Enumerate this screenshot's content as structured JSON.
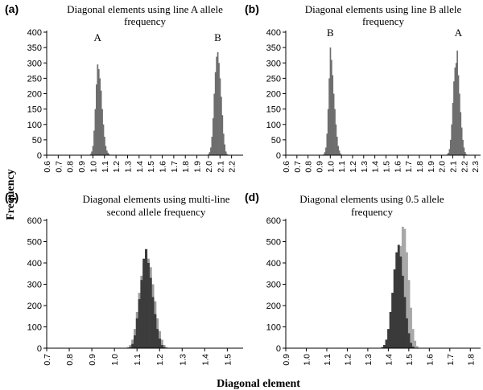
{
  "figure": {
    "ylabel": "Frequency",
    "xlabel": "Diagonal element"
  },
  "chart_data": [
    {
      "type": "bar",
      "panel": "(a)",
      "title_lines": [
        "Diagonal  elements using line A allele",
        "frequency"
      ],
      "ylim": [
        0,
        400
      ],
      "yticks": [
        0,
        50,
        100,
        150,
        200,
        250,
        300,
        350,
        400
      ],
      "xlim": [
        0.6,
        2.3
      ],
      "xticks": [
        "0.6",
        "0.7",
        "0.8",
        "0.9",
        "1.0",
        "1.1",
        "1.2",
        "1.3",
        "1.4",
        "1.5",
        "1.6",
        "1.7",
        "1.8",
        "1.9",
        "2.0",
        "2.1",
        "2.2"
      ],
      "bin_width": 0.01,
      "peak_labels": [
        {
          "text": "A",
          "x": 1.04
        },
        {
          "text": "B",
          "x": 2.08
        }
      ],
      "series": [
        {
          "color": "#6e6e6e",
          "x": [
            0.98,
            0.99,
            1.0,
            1.01,
            1.02,
            1.03,
            1.04,
            1.05,
            1.06,
            1.07,
            1.08,
            1.09,
            1.1,
            1.11,
            1.12,
            1.13,
            1.14
          ],
          "values": [
            4,
            12,
            30,
            80,
            150,
            230,
            295,
            280,
            250,
            210,
            150,
            100,
            60,
            30,
            15,
            8,
            3
          ]
        },
        {
          "color": "#6e6e6e",
          "x": [
            2.0,
            2.01,
            2.02,
            2.03,
            2.04,
            2.05,
            2.06,
            2.07,
            2.08,
            2.09,
            2.1,
            2.11,
            2.12,
            2.13,
            2.14,
            2.15,
            2.16
          ],
          "values": [
            4,
            10,
            25,
            60,
            120,
            200,
            270,
            320,
            335,
            300,
            250,
            190,
            130,
            70,
            35,
            12,
            4
          ]
        }
      ]
    },
    {
      "type": "bar",
      "panel": "(b)",
      "title_lines": [
        "Diagonal elements using line B allele",
        "frequency"
      ],
      "ylim": [
        0,
        400
      ],
      "yticks": [
        0,
        50,
        100,
        150,
        200,
        250,
        300,
        350,
        400
      ],
      "xlim": [
        0.6,
        2.35
      ],
      "xticks": [
        "0.6",
        "0.7",
        "0.8",
        "0.9",
        "1.0",
        "1.1",
        "1.2",
        "1.3",
        "1.4",
        "1.5",
        "1.6",
        "1.7",
        "1.8",
        "1.9",
        "2.0",
        "2.1",
        "2.2",
        "2.3"
      ],
      "bin_width": 0.01,
      "peak_labels": [
        {
          "text": "B",
          "x": 1.0
        },
        {
          "text": "A",
          "x": 2.15
        }
      ],
      "series": [
        {
          "color": "#6e6e6e",
          "x": [
            0.94,
            0.95,
            0.96,
            0.97,
            0.98,
            0.99,
            1.0,
            1.01,
            1.02,
            1.03,
            1.04,
            1.05,
            1.06,
            1.07,
            1.08,
            1.09,
            1.1
          ],
          "values": [
            3,
            10,
            25,
            70,
            150,
            250,
            350,
            310,
            260,
            200,
            150,
            100,
            60,
            30,
            15,
            6,
            2
          ]
        },
        {
          "color": "#6e6e6e",
          "x": [
            2.05,
            2.06,
            2.07,
            2.08,
            2.09,
            2.1,
            2.11,
            2.12,
            2.13,
            2.14,
            2.15,
            2.16,
            2.17,
            2.18,
            2.19,
            2.2,
            2.21,
            2.22
          ],
          "values": [
            3,
            8,
            20,
            50,
            100,
            170,
            240,
            285,
            300,
            340,
            260,
            200,
            140,
            90,
            50,
            25,
            10,
            3
          ]
        }
      ]
    },
    {
      "type": "bar",
      "panel": "(c)",
      "title_lines": [
        "Diagonal elements using multi-line",
        "second allele frequency"
      ],
      "ylim": [
        0,
        600
      ],
      "yticks": [
        0,
        100,
        200,
        300,
        400,
        500,
        600
      ],
      "xlim": [
        0.7,
        1.57
      ],
      "xticks": [
        "0.7",
        "0.8",
        "0.9",
        "1.0",
        "1.1",
        "1.2",
        "1.3",
        "1.4",
        "1.5"
      ],
      "bin_width": 0.01,
      "peak_labels": [],
      "series": [
        {
          "color": "#9c9c9c",
          "x": [
            1.06,
            1.07,
            1.08,
            1.09,
            1.1,
            1.11,
            1.12,
            1.13,
            1.14,
            1.15,
            1.16,
            1.17,
            1.18,
            1.19,
            1.2,
            1.21,
            1.22,
            1.23
          ],
          "values": [
            5,
            15,
            40,
            90,
            170,
            260,
            340,
            400,
            440,
            420,
            380,
            300,
            220,
            140,
            80,
            40,
            15,
            5
          ]
        },
        {
          "color": "#3c3c3c",
          "x": [
            1.07,
            1.08,
            1.09,
            1.1,
            1.11,
            1.12,
            1.13,
            1.14,
            1.15,
            1.16,
            1.17,
            1.18,
            1.19,
            1.2,
            1.21,
            1.22
          ],
          "values": [
            5,
            20,
            60,
            140,
            230,
            320,
            420,
            465,
            400,
            330,
            240,
            160,
            90,
            45,
            15,
            5
          ]
        }
      ]
    },
    {
      "type": "bar",
      "panel": "(d)",
      "title_lines": [
        "Diagonal elements using 0.5 allele",
        "frequency"
      ],
      "ylim": [
        0,
        600
      ],
      "yticks": [
        0,
        100,
        200,
        300,
        400,
        500,
        600
      ],
      "xlim": [
        0.9,
        1.85
      ],
      "xticks": [
        "0.9",
        "1.0",
        "1.1",
        "1.2",
        "1.3",
        "1.4",
        "1.5",
        "1.6",
        "1.7",
        "1.8"
      ],
      "bin_width": 0.01,
      "peak_labels": [],
      "series": [
        {
          "color": "#a8a8a8",
          "x": [
            1.4,
            1.41,
            1.42,
            1.43,
            1.44,
            1.45,
            1.46,
            1.47,
            1.48,
            1.49,
            1.5,
            1.51,
            1.52,
            1.53,
            1.54
          ],
          "values": [
            5,
            20,
            60,
            130,
            230,
            350,
            480,
            570,
            560,
            450,
            320,
            190,
            90,
            35,
            10
          ]
        },
        {
          "color": "#3a3a3a",
          "x": [
            1.37,
            1.38,
            1.39,
            1.4,
            1.41,
            1.42,
            1.43,
            1.44,
            1.45,
            1.46,
            1.47,
            1.48,
            1.49,
            1.5,
            1.51,
            1.52
          ],
          "values": [
            5,
            15,
            40,
            90,
            170,
            260,
            370,
            450,
            485,
            430,
            340,
            240,
            140,
            70,
            25,
            8
          ]
        }
      ]
    }
  ]
}
